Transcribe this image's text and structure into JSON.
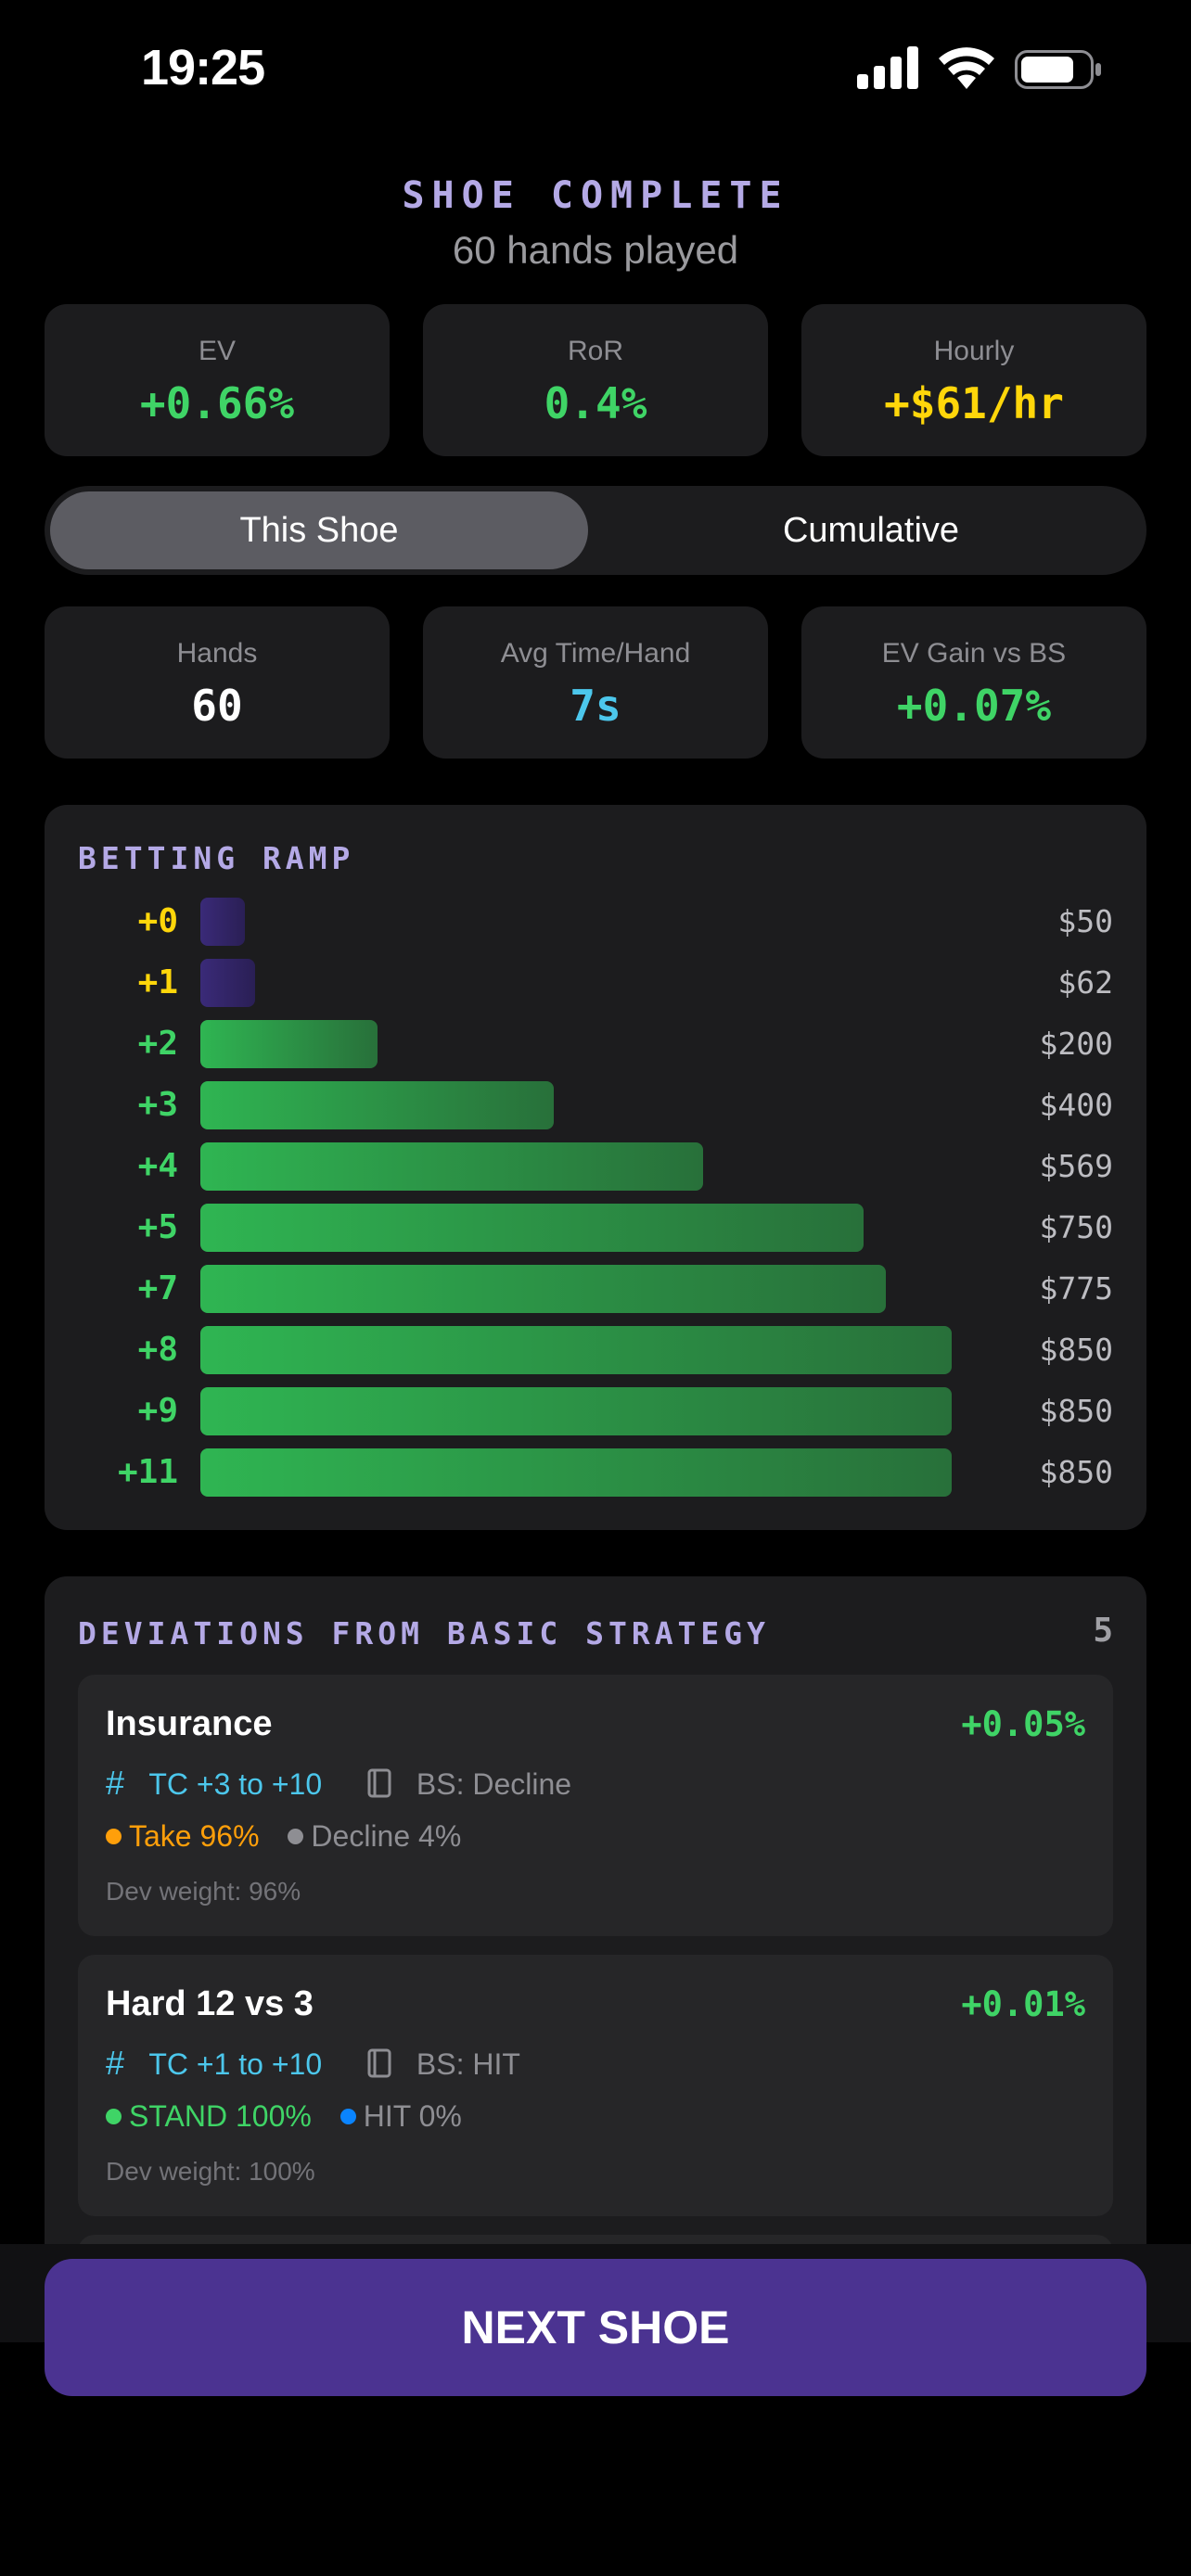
{
  "status_bar": {
    "time": "19:25"
  },
  "header": {
    "title": "SHOE COMPLETE",
    "subtitle": "60 hands played"
  },
  "summary": [
    {
      "label": "EV",
      "value": "+0.66%"
    },
    {
      "label": "RoR",
      "value": "0.4%"
    },
    {
      "label": "Hourly",
      "value": "+$61/hr"
    }
  ],
  "tabs": {
    "this_shoe": "This Shoe",
    "cumulative": "Cumulative",
    "selected": "This Shoe"
  },
  "metrics": [
    {
      "label": "Hands",
      "value": "60"
    },
    {
      "label": "Avg Time/Hand",
      "value": "7s"
    },
    {
      "label": "EV Gain vs BS",
      "value": "+0.07%"
    }
  ],
  "betting_ramp": {
    "title": "BETTING RAMP",
    "rows": [
      {
        "tc": "+0",
        "amount": "$50"
      },
      {
        "tc": "+1",
        "amount": "$62"
      },
      {
        "tc": "+2",
        "amount": "$200"
      },
      {
        "tc": "+3",
        "amount": "$400"
      },
      {
        "tc": "+4",
        "amount": "$569"
      },
      {
        "tc": "+5",
        "amount": "$750"
      },
      {
        "tc": "+7",
        "amount": "$775"
      },
      {
        "tc": "+8",
        "amount": "$850"
      },
      {
        "tc": "+9",
        "amount": "$850"
      },
      {
        "tc": "+11",
        "amount": "$850"
      }
    ]
  },
  "deviations": {
    "title": "DEVIATIONS FROM BASIC STRATEGY",
    "count": "5",
    "items": [
      {
        "name": "Insurance",
        "ev": "+0.05%",
        "tc_range": "TC +3 to +10",
        "bs": "BS: Decline",
        "opt_a": "Take 96%",
        "opt_b": "Decline 4%",
        "weight": "Dev weight: 96%"
      },
      {
        "name": "Hard 12 vs 3",
        "ev": "+0.01%",
        "tc_range": "TC +1 to +10",
        "bs": "BS: HIT",
        "opt_a": "STAND 100%",
        "opt_b": "HIT 0%",
        "weight": "Dev weight: 100%"
      }
    ]
  },
  "footer": {
    "next_label": "NEXT SHOE"
  },
  "colors": {
    "accent_purple": "#4b3391",
    "green": "#3fd466",
    "yellow": "#ffd60a",
    "cyan": "#4cc7ec",
    "orange": "#ff9f0a",
    "blue": "#0a84ff"
  }
}
